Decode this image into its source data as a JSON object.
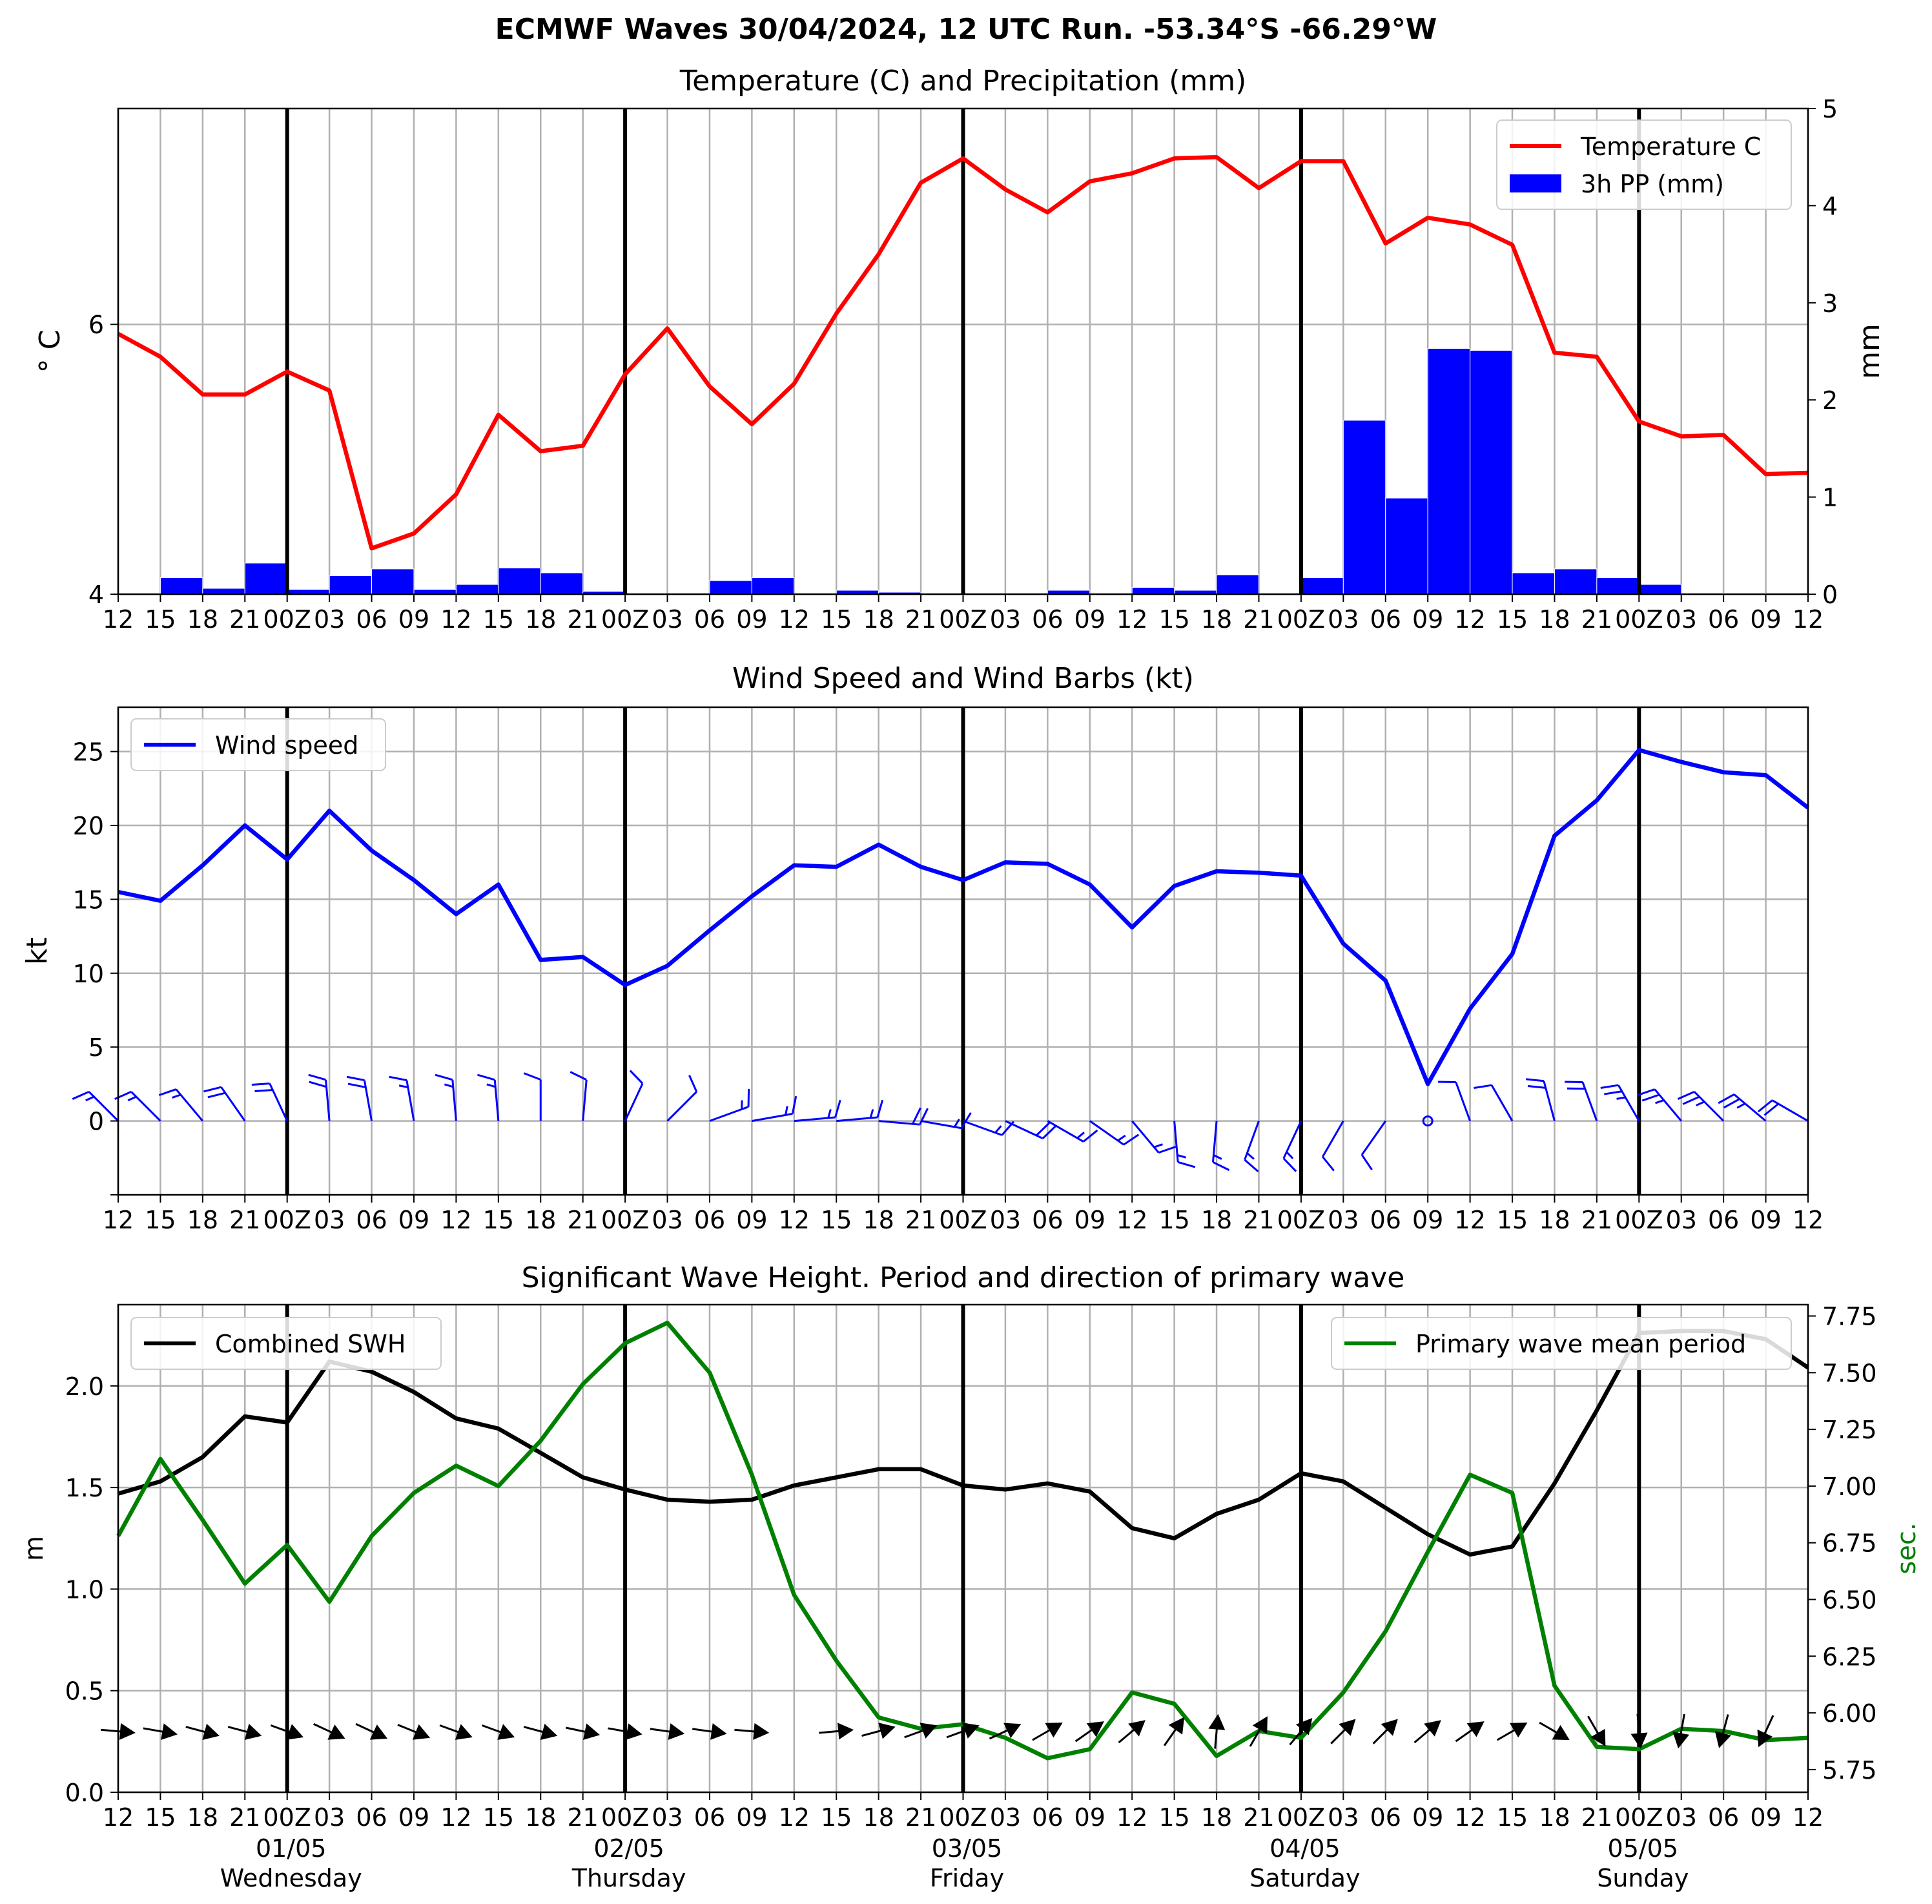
{
  "suptitle": "ECMWF Waves 30/04/2024, 12 UTC Run. -53.34°S -66.29°W",
  "x_ticks": [
    "12",
    "15",
    "18",
    "21",
    "00Z",
    "03",
    "06",
    "09",
    "12",
    "15",
    "18",
    "21",
    "00Z",
    "03",
    "06",
    "09",
    "12",
    "15",
    "18",
    "21",
    "00Z",
    "03",
    "06",
    "09",
    "12",
    "15",
    "18",
    "21",
    "00Z",
    "03",
    "06",
    "09",
    "12",
    "15",
    "18",
    "21",
    "00Z",
    "03",
    "06",
    "09",
    "12"
  ],
  "day_labels": [
    {
      "date": "01/05",
      "day": "Wednesday"
    },
    {
      "date": "02/05",
      "day": "Thursday"
    },
    {
      "date": "03/05",
      "day": "Friday"
    },
    {
      "date": "04/05",
      "day": "Saturday"
    },
    {
      "date": "05/05",
      "day": "Sunday"
    }
  ],
  "chart_data": [
    {
      "type": "line",
      "title": "Temperature (C) and Precipitation (mm)",
      "ylabel": "° C",
      "y2label": "mm",
      "ylim": [
        4.0,
        7.6
      ],
      "y2lim": [
        0,
        5
      ],
      "yticks": [
        4,
        6
      ],
      "y2ticks": [
        0,
        1,
        2,
        3,
        4,
        5
      ],
      "legend_position": "upper right",
      "grid": true,
      "series": [
        {
          "name": "Temperature C",
          "color": "#ff0000",
          "axis": "left",
          "kind": "line",
          "values": [
            5.93,
            5.76,
            5.48,
            5.48,
            5.65,
            5.51,
            4.34,
            4.45,
            4.74,
            5.33,
            5.06,
            5.1,
            5.63,
            5.97,
            5.54,
            5.26,
            5.56,
            6.08,
            6.52,
            7.05,
            7.23,
            7.0,
            6.83,
            7.06,
            7.12,
            7.23,
            7.24,
            7.01,
            7.21,
            7.21,
            6.6,
            6.79,
            6.74,
            6.59,
            5.79,
            5.76,
            5.28,
            5.17,
            5.18,
            4.89,
            4.9
          ]
        },
        {
          "name": "3h PP (mm)",
          "color": "#0000ff",
          "axis": "right",
          "kind": "bar",
          "values": [
            0.01,
            0.17,
            0.06,
            0.32,
            0.05,
            0.19,
            0.26,
            0.05,
            0.1,
            0.27,
            0.22,
            0.03,
            0.0,
            0.0,
            0.14,
            0.17,
            0.0,
            0.04,
            0.02,
            0.0,
            0.0,
            0.0,
            0.04,
            0.0,
            0.07,
            0.04,
            0.2,
            0.0,
            0.17,
            1.79,
            0.99,
            2.53,
            2.51,
            0.22,
            0.26,
            0.17,
            0.1,
            0.0,
            0.01,
            0.0
          ]
        }
      ]
    },
    {
      "type": "line",
      "title": "Wind Speed and Wind Barbs (kt)",
      "ylabel": "kt",
      "ylim": [
        -5,
        28
      ],
      "yticks": [
        0,
        5,
        10,
        15,
        20,
        25
      ],
      "legend_position": "upper left",
      "grid": true,
      "series": [
        {
          "name": "Wind speed",
          "color": "#0000ff",
          "values": [
            15.5,
            14.9,
            17.3,
            20.0,
            17.7,
            21.0,
            18.3,
            16.3,
            14.0,
            16.0,
            10.9,
            11.1,
            9.2,
            10.5,
            12.9,
            15.2,
            17.3,
            17.2,
            18.7,
            17.2,
            16.3,
            17.5,
            17.4,
            16.0,
            13.1,
            15.9,
            16.9,
            16.8,
            16.6,
            12.0,
            9.5,
            2.5,
            7.6,
            11.3,
            19.3,
            21.7,
            25.1,
            24.3,
            23.6,
            23.4,
            21.2
          ]
        },
        {
          "name": "Wind barb direction (deg from)",
          "color": "#0000ff",
          "kind": "barbs",
          "values": [
            315,
            315,
            320,
            325,
            335,
            355,
            350,
            350,
            355,
            355,
            0,
            5,
            25,
            45,
            70,
            80,
            85,
            85,
            95,
            100,
            110,
            115,
            120,
            125,
            140,
            175,
            185,
            200,
            205,
            210,
            215,
            0,
            340,
            330,
            345,
            340,
            330,
            320,
            315,
            310,
            300
          ]
        }
      ]
    },
    {
      "type": "line",
      "title": "Significant Wave Height. Period and direction of primary wave",
      "ylabel": "m",
      "y2label": "sec.",
      "ylim": [
        0,
        2.4
      ],
      "y2lim": [
        5.65,
        7.8
      ],
      "yticks": [
        0.0,
        0.5,
        1.0,
        1.5,
        2.0
      ],
      "y2ticks": [
        5.75,
        6.0,
        6.25,
        6.5,
        6.75,
        7.0,
        7.25,
        7.5,
        7.75
      ],
      "grid": true,
      "series": [
        {
          "name": "Combined SWH",
          "color": "#000000",
          "axis": "left",
          "legend_position": "upper left",
          "values": [
            1.47,
            1.53,
            1.65,
            1.85,
            1.82,
            2.12,
            2.07,
            1.97,
            1.84,
            1.79,
            1.67,
            1.55,
            1.49,
            1.44,
            1.43,
            1.44,
            1.51,
            1.55,
            1.59,
            1.59,
            1.51,
            1.49,
            1.52,
            1.48,
            1.3,
            1.25,
            1.37,
            1.44,
            1.57,
            1.53,
            1.4,
            1.27,
            1.17,
            1.21,
            1.52,
            1.88,
            2.26,
            2.27,
            2.27,
            2.23,
            2.09
          ]
        },
        {
          "name": "Primary wave mean period",
          "color": "#008000",
          "axis": "right",
          "legend_position": "upper right",
          "values": [
            6.78,
            7.12,
            6.85,
            6.57,
            6.74,
            6.49,
            6.78,
            6.97,
            7.09,
            7.0,
            7.2,
            7.45,
            7.63,
            7.72,
            7.5,
            7.05,
            6.52,
            6.23,
            5.98,
            5.93,
            5.95,
            5.89,
            5.8,
            5.84,
            6.09,
            6.04,
            5.81,
            5.92,
            5.89,
            6.09,
            6.36,
            6.71,
            7.05,
            6.97,
            6.12,
            5.85,
            5.84,
            5.93,
            5.92,
            5.88,
            5.89
          ]
        },
        {
          "name": "Primary wave direction (deg from)",
          "color": "#000000",
          "kind": "arrows",
          "values": [
            275,
            280,
            285,
            285,
            290,
            295,
            295,
            292,
            290,
            290,
            285,
            282,
            280,
            278,
            278,
            275,
            null,
            265,
            255,
            250,
            250,
            245,
            240,
            235,
            230,
            215,
            185,
            210,
            220,
            225,
            225,
            230,
            235,
            240,
            300,
            330,
            355,
            10,
            15,
            25,
            null
          ]
        }
      ]
    }
  ]
}
